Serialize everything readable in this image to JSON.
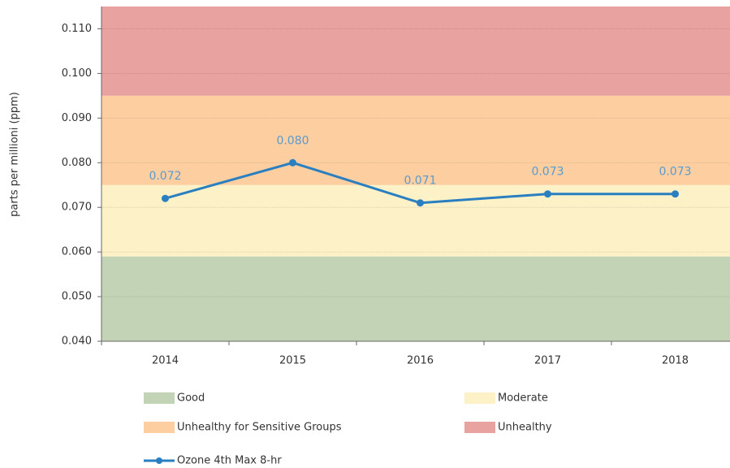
{
  "chart_data": {
    "type": "line",
    "y_label": "parts per millioni (ppm)",
    "categories": [
      "2014",
      "2015",
      "2016",
      "2017",
      "2018"
    ],
    "series": [
      {
        "name": "Ozone 4th Max 8-hr",
        "color": "#2a7fc1",
        "values": [
          0.072,
          0.08,
          0.071,
          0.073,
          0.073
        ],
        "value_labels": [
          "0.072",
          "0.080",
          "0.071",
          "0.073",
          "0.073"
        ]
      }
    ],
    "bands": [
      {
        "name": "Good",
        "color": "#c3d4b6",
        "from": 0.04,
        "to": 0.059
      },
      {
        "name": "Moderate",
        "color": "#fdf1c7",
        "from": 0.059,
        "to": 0.075
      },
      {
        "name": "Unhealthy for Sensitive Groups",
        "color": "#fdcea0",
        "from": 0.075,
        "to": 0.095
      },
      {
        "name": "Unhealthy",
        "color": "#e8a3a1",
        "from": 0.095,
        "to": 0.115
      }
    ],
    "ylim": [
      0.04,
      0.115
    ],
    "yticks": [
      {
        "value": 0.04,
        "label": "0.040"
      },
      {
        "value": 0.05,
        "label": "0.050"
      },
      {
        "value": 0.06,
        "label": "0.060"
      },
      {
        "value": 0.07,
        "label": "0.070"
      },
      {
        "value": 0.08,
        "label": "0.080"
      },
      {
        "value": 0.09,
        "label": "0.090"
      },
      {
        "value": 0.1,
        "label": "0.100"
      },
      {
        "value": 0.11,
        "label": "0.110"
      }
    ],
    "grid": true
  }
}
